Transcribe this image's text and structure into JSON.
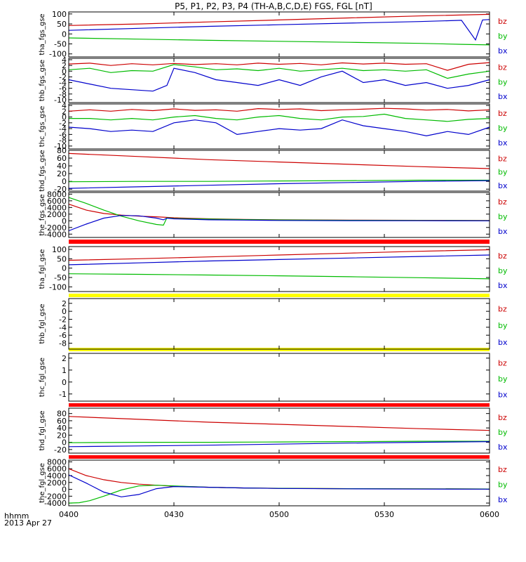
{
  "chart_data": {
    "type": "line",
    "title": "P5, P1, P2, P3, P4 (TH-A,B,C,D,E) FGS, FGL [nT]",
    "x_ticks": [
      "0400",
      "0430",
      "0500",
      "0530",
      "0600"
    ],
    "x_axis_caption": [
      "hhmm",
      "2013 Apr 27"
    ],
    "x_range_minutes": [
      0,
      120
    ],
    "legend": [
      {
        "label": "bz",
        "color": "#cc0000"
      },
      {
        "label": "by",
        "color": "#00bb00"
      },
      {
        "label": "bx",
        "color": "#0000cc"
      }
    ],
    "panels": [
      {
        "ylabel": "tha_fgs_gse",
        "ylim": [
          -115,
          110
        ],
        "yticks": [
          100,
          50,
          0,
          -50,
          -100
        ],
        "series": [
          {
            "label": "bz",
            "x": [
              0,
              20,
              40,
              60,
              80,
              100,
              120
            ],
            "y": [
              42,
              50,
              60,
              70,
              80,
              90,
              98
            ]
          },
          {
            "label": "by",
            "x": [
              0,
              20,
              40,
              60,
              80,
              100,
              112,
              120
            ],
            "y": [
              -20,
              -26,
              -32,
              -37,
              -42,
              -47,
              -52,
              -55
            ]
          },
          {
            "label": "bx",
            "x": [
              0,
              20,
              40,
              60,
              80,
              100,
              112,
              116,
              118,
              120
            ],
            "y": [
              18,
              28,
              38,
              46,
              54,
              62,
              68,
              -30,
              70,
              72
            ]
          }
        ]
      },
      {
        "ylabel": "thb_fgs_gse",
        "ylim": [
          -11,
          4.5
        ],
        "yticks": [
          4,
          2,
          0,
          -2,
          -4,
          -6,
          -8,
          -10
        ],
        "series": [
          {
            "label": "bz",
            "x": [
              0,
              6,
              12,
              18,
              24,
              30,
              36,
              42,
              48,
              54,
              60,
              66,
              72,
              78,
              84,
              90,
              96,
              102,
              108,
              114,
              120
            ],
            "y": [
              2.5,
              2.8,
              2,
              2.6,
              2.2,
              2.7,
              2.3,
              2.6,
              2.2,
              2.8,
              2.4,
              2.7,
              2.2,
              2.9,
              2.5,
              2.8,
              2.4,
              2.6,
              0.3,
              2.4,
              3
            ]
          },
          {
            "label": "by",
            "x": [
              0,
              6,
              12,
              18,
              24,
              30,
              36,
              42,
              48,
              54,
              60,
              66,
              72,
              78,
              84,
              90,
              96,
              102,
              108,
              114,
              120
            ],
            "y": [
              0.5,
              1,
              -0.5,
              0.2,
              0,
              2.3,
              1.5,
              0.5,
              0.8,
              0.2,
              1,
              0,
              0.5,
              1,
              0.2,
              0.5,
              0,
              0.5,
              -2.5,
              -1,
              0
            ]
          },
          {
            "label": "bx",
            "x": [
              0,
              6,
              12,
              18,
              24,
              28,
              30,
              36,
              42,
              48,
              54,
              60,
              66,
              72,
              78,
              84,
              90,
              96,
              102,
              108,
              114,
              120
            ],
            "y": [
              -3,
              -4.5,
              -6,
              -6.5,
              -7,
              -5,
              1,
              -0.5,
              -3,
              -4,
              -5,
              -3,
              -5,
              -2,
              0,
              -4,
              -3,
              -5,
              -4,
              -6,
              -5,
              -3
            ]
          }
        ]
      },
      {
        "ylabel": "thc_fgs_gse",
        "ylim": [
          -11,
          4.5
        ],
        "yticks": [
          4,
          2,
          0,
          -2,
          -4,
          -6,
          -8,
          -10
        ],
        "series": [
          {
            "label": "bz",
            "x": [
              0,
              6,
              12,
              18,
              24,
              30,
              36,
              42,
              48,
              54,
              60,
              66,
              72,
              78,
              84,
              90,
              96,
              102,
              108,
              114,
              120
            ],
            "y": [
              2,
              2.5,
              2,
              2.6,
              2.2,
              2.8,
              2.3,
              2.5,
              2,
              2.9,
              2.6,
              2.8,
              2.2,
              2.5,
              2.7,
              3,
              2.8,
              2.4,
              2.6,
              2.1,
              2.5
            ]
          },
          {
            "label": "by",
            "x": [
              0,
              6,
              12,
              18,
              24,
              30,
              36,
              42,
              48,
              54,
              60,
              66,
              72,
              78,
              84,
              90,
              96,
              102,
              108,
              114,
              120
            ],
            "y": [
              -0.5,
              -0.5,
              -1,
              -0.5,
              -1,
              0,
              0.5,
              -0.5,
              -1,
              0,
              0.5,
              -0.5,
              -1,
              0,
              0.2,
              1,
              -0.5,
              -1,
              -1.5,
              -0.8,
              -0.5
            ]
          },
          {
            "label": "bx",
            "x": [
              0,
              6,
              12,
              18,
              24,
              30,
              36,
              42,
              48,
              54,
              60,
              66,
              72,
              78,
              84,
              90,
              96,
              102,
              108,
              114,
              120
            ],
            "y": [
              -3.5,
              -4,
              -5,
              -4.5,
              -5,
              -2,
              -1,
              -2,
              -6,
              -5,
              -4,
              -4.5,
              -4,
              -1,
              -3,
              -4,
              -5,
              -6.5,
              -5,
              -6,
              -3.5
            ]
          }
        ]
      },
      {
        "ylabel": "thd_fgs_gse",
        "ylim": [
          -25,
          80
        ],
        "yticks": [
          80,
          60,
          40,
          20,
          0,
          -20
        ],
        "series": [
          {
            "label": "bz",
            "x": [
              0,
              20,
              40,
              60,
              80,
              100,
              120
            ],
            "y": [
              72,
              64,
              56,
              50,
              44,
              38,
              33
            ]
          },
          {
            "label": "by",
            "x": [
              0,
              20,
              40,
              60,
              80,
              100,
              120
            ],
            "y": [
              -1,
              0,
              0,
              1,
              2,
              3,
              3
            ]
          },
          {
            "label": "bx",
            "x": [
              0,
              20,
              40,
              60,
              80,
              100,
              120
            ],
            "y": [
              -18,
              -14,
              -10,
              -6,
              -3,
              0,
              2
            ]
          }
        ]
      },
      {
        "ylabel": "the_fgs_gse",
        "ylim": [
          -5000,
          8500
        ],
        "yticks": [
          8000,
          6000,
          4000,
          2000,
          0,
          -2000,
          -4000
        ],
        "series": [
          {
            "label": "bz",
            "x": [
              0,
              5,
              10,
              15,
              20,
              25,
              30,
              40,
              50,
              60,
              80,
              100,
              120
            ],
            "y": [
              5000,
              3200,
              2200,
              1700,
              1400,
              1200,
              900,
              600,
              400,
              300,
              200,
              150,
              100
            ]
          },
          {
            "label": "by",
            "x": [
              0,
              5,
              10,
              15,
              20,
              25,
              27,
              28,
              30,
              40,
              50,
              60,
              80,
              100,
              120
            ],
            "y": [
              7000,
              5200,
              3200,
              1400,
              0,
              -1100,
              -1300,
              900,
              700,
              500,
              350,
              250,
              150,
              100,
              50
            ]
          },
          {
            "label": "bx",
            "x": [
              0,
              5,
              10,
              15,
              20,
              25,
              27,
              28,
              30,
              40,
              50,
              60,
              80,
              100,
              120
            ],
            "y": [
              -3000,
              -1000,
              800,
              1600,
              1500,
              800,
              300,
              800,
              600,
              300,
              200,
              100,
              50,
              20,
              0
            ]
          }
        ]
      },
      {
        "ylabel": "tha_fgl_gse",
        "ylim": [
          -125,
          115
        ],
        "yticks": [
          100,
          50,
          0,
          -50,
          -100
        ],
        "series": [
          {
            "label": "bz",
            "x": [
              0,
              20,
              40,
              60,
              80,
              100,
              120
            ],
            "y": [
              42,
              50,
              60,
              70,
              80,
              90,
              98
            ]
          },
          {
            "label": "by",
            "x": [
              0,
              20,
              40,
              60,
              80,
              100,
              120
            ],
            "y": [
              -30,
              -33,
              -37,
              -41,
              -46,
              -51,
              -57
            ]
          },
          {
            "label": "bx",
            "x": [
              0,
              20,
              40,
              60,
              80,
              100,
              120
            ],
            "y": [
              18,
              28,
              38,
              46,
              54,
              62,
              70
            ]
          }
        ]
      },
      {
        "ylabel": "thb_fgl_gse",
        "ylim": [
          -9.5,
          3.2
        ],
        "yticks": [
          2,
          0,
          -2,
          -4,
          -6,
          -8
        ],
        "series": []
      },
      {
        "ylabel": "thc_fgl_gse",
        "ylim": [
          -1.6,
          2.4
        ],
        "yticks": [
          2,
          1,
          0,
          -1
        ],
        "series": []
      },
      {
        "ylabel": "thd_fgl_gse",
        "ylim": [
          -30,
          95
        ],
        "yticks": [
          80,
          60,
          40,
          20,
          0,
          -20
        ],
        "series": [
          {
            "label": "bz",
            "x": [
              0,
              20,
              40,
              60,
              80,
              100,
              120
            ],
            "y": [
              72,
              64,
              56,
              50,
              44,
              38,
              33
            ]
          },
          {
            "label": "by",
            "x": [
              0,
              20,
              40,
              60,
              80,
              100,
              120
            ],
            "y": [
              -1,
              0,
              0,
              1,
              2,
              3,
              3
            ]
          },
          {
            "label": "bx",
            "x": [
              0,
              20,
              40,
              60,
              80,
              100,
              120
            ],
            "y": [
              -12,
              -10,
              -8,
              -5,
              -2,
              0,
              2
            ]
          }
        ]
      },
      {
        "ylabel": "the_fgl_gse",
        "ylim": [
          -4800,
          8500
        ],
        "yticks": [
          8000,
          6000,
          4000,
          2000,
          0,
          -2000,
          -4000
        ],
        "series": [
          {
            "label": "bz",
            "x": [
              0,
              5,
              10,
              15,
              20,
              25,
              30,
              40,
              50,
              60,
              80,
              100,
              120
            ],
            "y": [
              6000,
              4000,
              2800,
              2000,
              1500,
              1200,
              900,
              600,
              400,
              300,
              200,
              150,
              100
            ]
          },
          {
            "label": "by",
            "x": [
              0,
              3,
              6,
              10,
              15,
              20,
              25,
              30,
              40,
              50,
              60,
              80,
              100,
              120
            ],
            "y": [
              -4000,
              -3900,
              -3300,
              -2000,
              -200,
              1000,
              1200,
              1000,
              600,
              400,
              300,
              200,
              150,
              100
            ]
          },
          {
            "label": "bx",
            "x": [
              0,
              5,
              10,
              15,
              20,
              25,
              30,
              40,
              50,
              60,
              80,
              100,
              120
            ],
            "y": [
              4200,
              1800,
              -800,
              -2200,
              -1500,
              200,
              800,
              600,
              400,
              250,
              150,
              80,
              50
            ]
          }
        ]
      }
    ],
    "separator_bars": [
      {
        "after_panel": 4,
        "color": "#ff0000"
      },
      {
        "after_panel": 5,
        "color": "#ffff00"
      },
      {
        "after_panel": 6,
        "color": "#ffff00"
      },
      {
        "after_panel": 7,
        "color": "#ff0000"
      },
      {
        "after_panel": 8,
        "color": "#ff0000"
      }
    ]
  }
}
